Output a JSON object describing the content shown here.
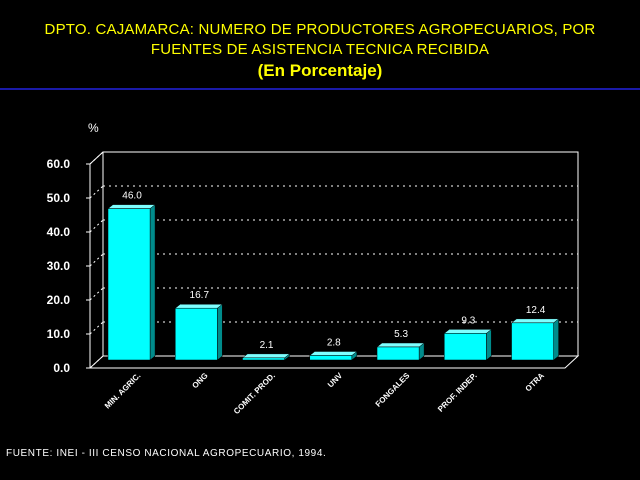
{
  "header": {
    "title_line1": "DPTO. CAJAMARCA: NUMERO DE PRODUCTORES AGROPECUARIOS, POR",
    "title_line2": "FUENTES DE ASISTENCIA TECNICA RECIBIDA",
    "subtitle": "(En Porcentaje)",
    "rule_color": "#1a1aa8",
    "title_color": "#ffff00"
  },
  "chart_data": {
    "type": "bar",
    "title": "DPTO. CAJAMARCA: NUMERO DE PRODUCTORES AGROPECUARIOS, POR FUENTES DE ASISTENCIA TECNICA RECIBIDA",
    "subtitle": "(En Porcentaje)",
    "ylabel": "%",
    "xlabel": "",
    "categories": [
      "MIN. AGRIC.",
      "ONG",
      "COMIT. PROD.",
      "UNV",
      "FONGALES",
      "PROF. INDEP.",
      "OTRA"
    ],
    "values": [
      46.0,
      16.7,
      2.1,
      2.8,
      5.3,
      9.3,
      12.4
    ],
    "data_labels": [
      "46.0",
      "16.7",
      "2.1",
      "2.8",
      "5.3",
      "9.3",
      "12.4"
    ],
    "ylim": [
      0,
      60
    ],
    "yticks": [
      "0.0",
      "10.0",
      "20.0",
      "30.0",
      "40.0",
      "50.0",
      "60.0"
    ],
    "grid": true,
    "legend": "none",
    "bar_color": "#00ffff",
    "style": "3d"
  },
  "footer": {
    "source": "FUENTE: INEI - III CENSO NACIONAL AGROPECUARIO, 1994."
  }
}
